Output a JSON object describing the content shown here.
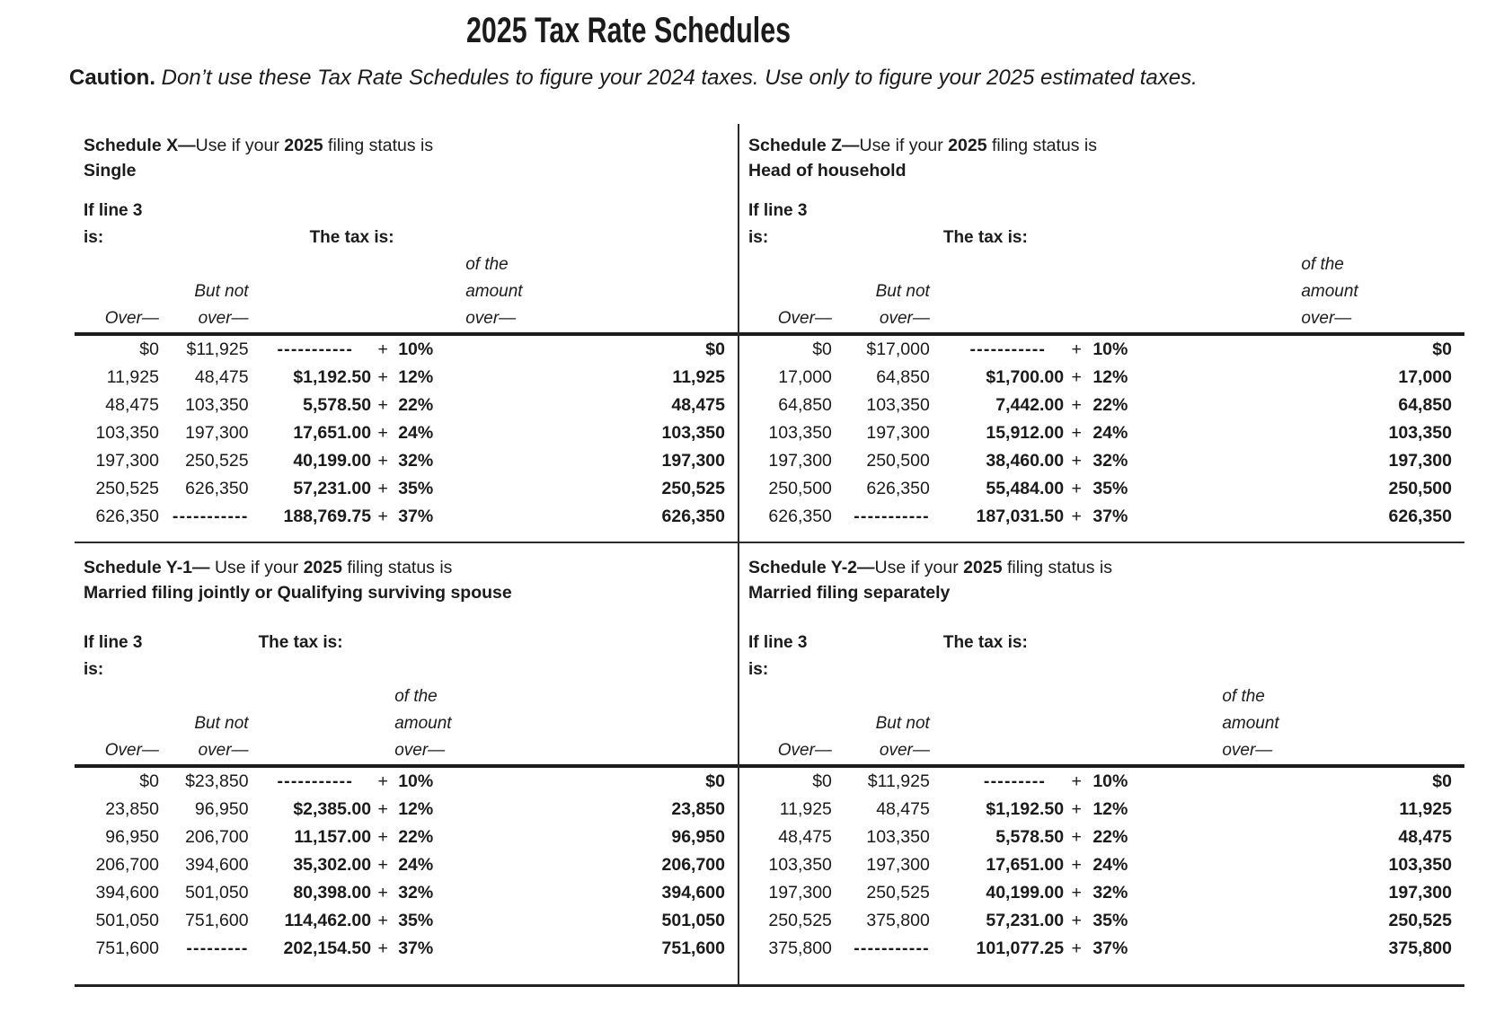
{
  "page_title": "2025 Tax Rate Schedules",
  "caution": {
    "label": "Caution.",
    "text": " Don’t use these Tax Rate Schedules to figure your 2024 taxes. Use only to figure your 2025 estimated taxes."
  },
  "column_labels": {
    "if_line_3": "If line 3",
    "is": "is:",
    "the_tax_is": "The tax is:",
    "over": "Over—",
    "but_not": "But not",
    "over_dash": "over—",
    "of_the": "of the",
    "amount": "amount",
    "plus": "+"
  },
  "schedules": [
    {
      "key": "X",
      "heading": {
        "bold_lead": "Schedule X—",
        "plain_mid": "Use if your ",
        "bold_year": "2025",
        "plain_tail": " filing status is",
        "status": "Single"
      },
      "rows": [
        {
          "over": "$0",
          "but_not": "$11,925",
          "tax": "-----------",
          "pct": "10%",
          "of_amount": "$0"
        },
        {
          "over": "11,925",
          "but_not": "48,475",
          "tax": "$1,192.50",
          "pct": "12%",
          "of_amount": "11,925"
        },
        {
          "over": "48,475",
          "but_not": "103,350",
          "tax": "5,578.50",
          "pct": "22%",
          "of_amount": "48,475"
        },
        {
          "over": "103,350",
          "but_not": "197,300",
          "tax": "17,651.00",
          "pct": "24%",
          "of_amount": "103,350"
        },
        {
          "over": "197,300",
          "but_not": "250,525",
          "tax": "40,199.00",
          "pct": "32%",
          "of_amount": "197,300"
        },
        {
          "over": "250,525",
          "but_not": "626,350",
          "tax": "57,231.00",
          "pct": "35%",
          "of_amount": "250,525"
        },
        {
          "over": "626,350",
          "but_not": "-----------",
          "tax": "188,769.75",
          "pct": "37%",
          "of_amount": "626,350"
        }
      ]
    },
    {
      "key": "Z",
      "heading": {
        "bold_lead": "Schedule Z—",
        "plain_mid": "Use if your ",
        "bold_year": "2025",
        "plain_tail": " filing status is",
        "status": "Head of household"
      },
      "rows": [
        {
          "over": "$0",
          "but_not": "$17,000",
          "tax": "-----------",
          "pct": "10%",
          "of_amount": "$0"
        },
        {
          "over": "17,000",
          "but_not": "64,850",
          "tax": "$1,700.00",
          "pct": "12%",
          "of_amount": "17,000"
        },
        {
          "over": "64,850",
          "but_not": "103,350",
          "tax": "7,442.00",
          "pct": "22%",
          "of_amount": "64,850"
        },
        {
          "over": "103,350",
          "but_not": "197,300",
          "tax": "15,912.00",
          "pct": "24%",
          "of_amount": "103,350"
        },
        {
          "over": "197,300",
          "but_not": "250,500",
          "tax": "38,460.00",
          "pct": "32%",
          "of_amount": "197,300"
        },
        {
          "over": "250,500",
          "but_not": "626,350",
          "tax": "55,484.00",
          "pct": "35%",
          "of_amount": "250,500"
        },
        {
          "over": "626,350",
          "but_not": "-----------",
          "tax": "187,031.50",
          "pct": "37%",
          "of_amount": "626,350"
        }
      ]
    },
    {
      "key": "Y-1",
      "heading": {
        "bold_lead": "Schedule Y-1—",
        "plain_mid": " Use if your ",
        "bold_year": "2025",
        "plain_tail": " filing status is",
        "status": "Married filing jointly or Qualifying surviving spouse"
      },
      "rows": [
        {
          "over": "$0",
          "but_not": "$23,850",
          "tax": "-----------",
          "pct": "10%",
          "of_amount": "$0"
        },
        {
          "over": "23,850",
          "but_not": "96,950",
          "tax": "$2,385.00",
          "pct": "12%",
          "of_amount": "23,850"
        },
        {
          "over": "96,950",
          "but_not": "206,700",
          "tax": "11,157.00",
          "pct": "22%",
          "of_amount": "96,950"
        },
        {
          "over": "206,700",
          "but_not": "394,600",
          "tax": "35,302.00",
          "pct": "24%",
          "of_amount": "206,700"
        },
        {
          "over": "394,600",
          "but_not": "501,050",
          "tax": "80,398.00",
          "pct": "32%",
          "of_amount": "394,600"
        },
        {
          "over": "501,050",
          "but_not": "751,600",
          "tax": "114,462.00",
          "pct": "35%",
          "of_amount": "501,050"
        },
        {
          "over": "751,600",
          "but_not": "---------",
          "tax": "202,154.50",
          "pct": "37%",
          "of_amount": "751,600"
        }
      ]
    },
    {
      "key": "Y-2",
      "heading": {
        "bold_lead": "Schedule Y-2—",
        "plain_mid": "Use if your ",
        "bold_year": "2025",
        "plain_tail": " filing status is",
        "status": "Married filing separately"
      },
      "rows": [
        {
          "over": "$0",
          "but_not": "$11,925",
          "tax": "---------",
          "pct": "10%",
          "of_amount": "$0"
        },
        {
          "over": "11,925",
          "but_not": "48,475",
          "tax": "$1,192.50",
          "pct": "12%",
          "of_amount": "11,925"
        },
        {
          "over": "48,475",
          "but_not": "103,350",
          "tax": "5,578.50",
          "pct": "22%",
          "of_amount": "48,475"
        },
        {
          "over": "103,350",
          "but_not": "197,300",
          "tax": "17,651.00",
          "pct": "24%",
          "of_amount": "103,350"
        },
        {
          "over": "197,300",
          "but_not": "250,525",
          "tax": "40,199.00",
          "pct": "32%",
          "of_amount": "197,300"
        },
        {
          "over": "250,525",
          "but_not": "375,800",
          "tax": "57,231.00",
          "pct": "35%",
          "of_amount": "250,525"
        },
        {
          "over": "375,800",
          "but_not": "-----------",
          "tax": "101,077.25",
          "pct": "37%",
          "of_amount": "375,800"
        }
      ]
    }
  ]
}
